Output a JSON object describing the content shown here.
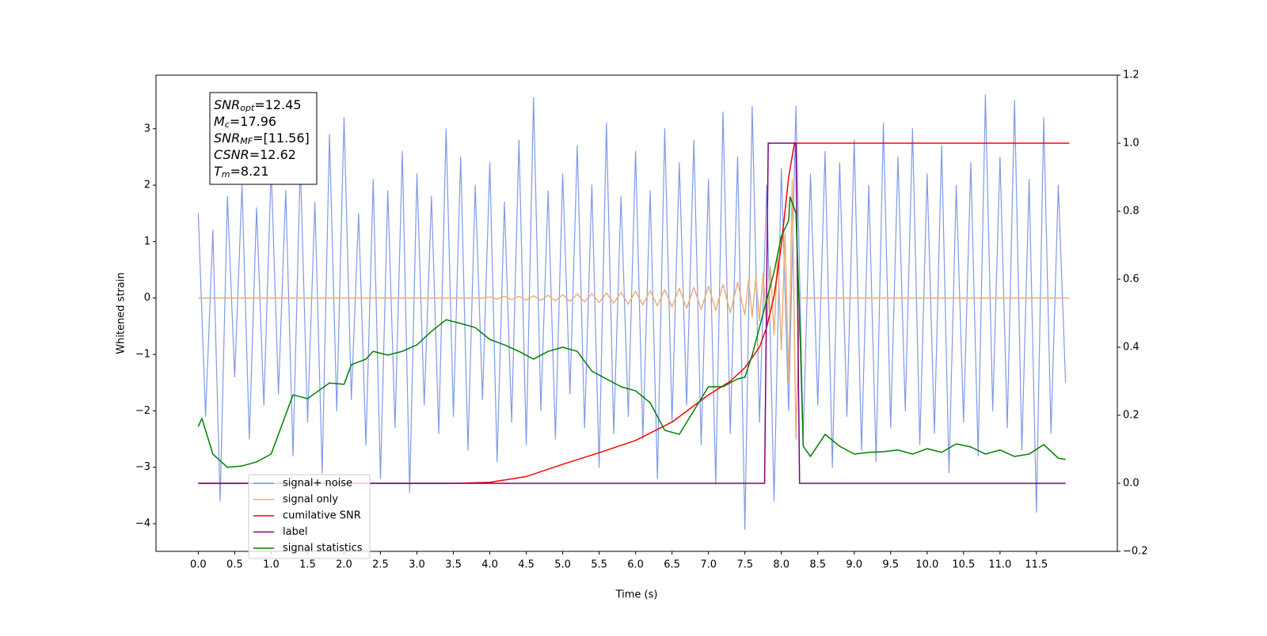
{
  "chart_data": {
    "type": "line",
    "x_label": "Time (s)",
    "y_label": "Whitened strain",
    "xlim": [
      -0.58,
      12.61
    ],
    "ylim": [
      -4.49,
      3.95
    ],
    "y2lim": [
      -0.2,
      1.2
    ],
    "xticks": [
      {
        "value": 0,
        "label": "0.0"
      },
      0.5,
      {
        "value": 1,
        "label": "1.0"
      },
      1.5,
      {
        "value": 2,
        "label": "2.0"
      },
      2.5,
      {
        "value": 3,
        "label": "3.0"
      },
      3.5,
      {
        "value": 4,
        "label": "4.0"
      },
      4.5,
      {
        "value": 5,
        "label": "5.0"
      },
      5.5,
      {
        "value": 6,
        "label": "6.0"
      },
      6.5,
      {
        "value": 7,
        "label": "7.0"
      },
      7.5,
      {
        "value": 8,
        "label": "8.0"
      },
      8.5,
      {
        "value": 9,
        "label": "9.0"
      },
      9.5,
      {
        "value": 10,
        "label": "10.0"
      },
      10.5,
      {
        "value": 11,
        "label": "11.0"
      },
      11.5
    ],
    "yticks": [
      {
        "value": -4,
        "label": "−4"
      },
      {
        "value": -3,
        "label": "−3"
      },
      {
        "value": -2,
        "label": "−2"
      },
      {
        "value": -1,
        "label": "−1"
      },
      0,
      1,
      2,
      3
    ],
    "y2ticks": [
      {
        "value": -0.2,
        "label": "−0.2"
      },
      {
        "value": 0,
        "label": "0.0"
      },
      0.2,
      0.4,
      0.6,
      0.8,
      {
        "value": 1,
        "label": "1.0"
      },
      1.2
    ],
    "legend": "lower left",
    "annotation": [
      {
        "main": "SNR",
        "sub": "opt",
        "rest": "=12.45"
      },
      {
        "main": "M",
        "sub": "c",
        "rest": "=17.96"
      },
      {
        "main": "SNR",
        "sub": "MF",
        "rest": "=[11.56]"
      },
      {
        "main": "CSNR",
        "sub": "",
        "rest": "=12.62"
      },
      {
        "main": "T",
        "sub": "m",
        "rest": "=8.21"
      }
    ],
    "series": [
      {
        "name": "signal+ noise",
        "color": "#7893e6",
        "x": [
          0,
          0.1,
          0.2,
          0.3,
          0.4,
          0.5,
          0.6,
          0.7,
          0.8,
          0.9,
          1,
          1.1,
          1.2,
          1.3,
          1.4,
          1.5,
          1.6,
          1.7,
          1.8,
          1.9,
          2,
          2.1,
          2.2,
          2.3,
          2.4,
          2.5,
          2.6,
          2.7,
          2.8,
          2.9,
          3,
          3.1,
          3.2,
          3.3,
          3.4,
          3.5,
          3.6,
          3.7,
          3.8,
          3.9,
          4,
          4.1,
          4.2,
          4.3,
          4.4,
          4.5,
          4.6,
          4.7,
          4.8,
          4.9,
          5,
          5.1,
          5.2,
          5.3,
          5.4,
          5.5,
          5.6,
          5.7,
          5.8,
          5.9,
          6,
          6.1,
          6.2,
          6.3,
          6.4,
          6.5,
          6.6,
          6.7,
          6.8,
          6.9,
          7,
          7.1,
          7.2,
          7.3,
          7.4,
          7.5,
          7.6,
          7.7,
          7.8,
          7.9,
          8,
          8.1,
          8.2,
          8.3,
          8.4,
          8.5,
          8.6,
          8.7,
          8.8,
          8.9,
          9,
          9.1,
          9.2,
          9.3,
          9.4,
          9.5,
          9.6,
          9.7,
          9.8,
          9.9,
          10,
          10.1,
          10.2,
          10.3,
          10.4,
          10.5,
          10.6,
          10.7,
          10.8,
          10.9,
          11,
          11.1,
          11.2,
          11.3,
          11.4,
          11.5,
          11.6,
          11.7,
          11.8,
          11.9
        ],
        "values": [
          1.5,
          -2.1,
          1.2,
          -3.6,
          1.8,
          -1.4,
          2.0,
          -2.5,
          1.6,
          -1.9,
          2.3,
          -1.7,
          1.9,
          -2.8,
          2.4,
          -2.2,
          1.7,
          -3.1,
          2.9,
          -2.0,
          3.2,
          -1.8,
          1.5,
          -2.6,
          2.1,
          -3.2,
          1.9,
          -2.3,
          2.6,
          -3.45,
          2.2,
          -1.9,
          1.8,
          -2.4,
          3.0,
          -2.1,
          2.5,
          -2.7,
          2.0,
          -1.8,
          2.4,
          -2.9,
          1.7,
          -2.2,
          2.8,
          -2.6,
          3.55,
          -2.0,
          1.9,
          -2.5,
          2.2,
          -1.7,
          2.7,
          -2.3,
          2.0,
          -3.0,
          3.1,
          -2.4,
          1.8,
          -2.1,
          2.6,
          -2.5,
          1.9,
          -3.2,
          3.0,
          -2.2,
          2.4,
          -1.9,
          2.8,
          -2.6,
          2.1,
          -3.3,
          3.3,
          -2.4,
          2.5,
          -4.1,
          3.4,
          -2.2,
          2.0,
          -3.6,
          2.3,
          -2.0,
          3.4,
          -2.5,
          2.2,
          -1.9,
          2.6,
          -3.0,
          2.4,
          -2.1,
          2.8,
          -2.7,
          2.0,
          -2.9,
          3.1,
          -2.3,
          2.5,
          -2.0,
          3.0,
          -2.6,
          2.2,
          -2.4,
          2.7,
          -3.1,
          2.0,
          -2.2,
          2.4,
          -2.8,
          3.6,
          -2.0,
          2.5,
          -2.3,
          3.5,
          -2.7,
          2.1,
          -3.8,
          3.2,
          -2.4,
          2.0,
          -1.5
        ]
      },
      {
        "name": "signal only",
        "color": "#e8b07a",
        "x": [
          0,
          3.9,
          4,
          4.1,
          4.2,
          4.3,
          4.4,
          4.5,
          4.6,
          4.7,
          4.8,
          4.9,
          5,
          5.1,
          5.2,
          5.3,
          5.4,
          5.5,
          5.6,
          5.7,
          5.8,
          5.9,
          6,
          6.1,
          6.2,
          6.3,
          6.4,
          6.5,
          6.6,
          6.7,
          6.8,
          6.9,
          7,
          7.1,
          7.2,
          7.3,
          7.4,
          7.5,
          7.55,
          7.6,
          7.65,
          7.7,
          7.75,
          7.8,
          7.85,
          7.9,
          7.95,
          8,
          8.05,
          8.1,
          8.15,
          8.2,
          8.25,
          11.95
        ],
        "values": [
          0,
          0,
          0.02,
          -0.02,
          0.03,
          -0.03,
          0.03,
          -0.04,
          0.04,
          -0.04,
          0.05,
          -0.05,
          0.06,
          -0.06,
          0.07,
          -0.07,
          0.08,
          -0.08,
          0.09,
          -0.09,
          0.1,
          -0.11,
          0.12,
          -0.12,
          0.13,
          -0.14,
          0.15,
          -0.16,
          0.17,
          -0.18,
          0.19,
          -0.2,
          0.21,
          -0.22,
          0.24,
          -0.26,
          0.28,
          -0.3,
          0.32,
          -0.34,
          0.37,
          -0.4,
          0.44,
          -0.5,
          0.56,
          -0.65,
          0.76,
          -0.92,
          1.15,
          -1.5,
          2.1,
          -2.5,
          0,
          0
        ]
      },
      {
        "name": "cumilative SNR",
        "color": "#ff0000",
        "axis": "y2",
        "x": [
          0,
          3.5,
          4,
          4.5,
          5,
          5.5,
          6,
          6.5,
          7,
          7.3,
          7.5,
          7.7,
          7.8,
          7.9,
          8,
          8.1,
          8.18,
          8.2,
          11.95
        ],
        "values": [
          0,
          0,
          0.003,
          0.02,
          0.056,
          0.09,
          0.126,
          0.18,
          0.26,
          0.3,
          0.34,
          0.4,
          0.46,
          0.55,
          0.7,
          0.9,
          1,
          1,
          1
        ]
      },
      {
        "name": "label",
        "color": "#800080",
        "axis": "y2",
        "x": [
          0,
          7.77,
          7.82,
          8.2,
          8.25,
          11.9
        ],
        "values": [
          0,
          0,
          1,
          1,
          0,
          0
        ]
      },
      {
        "name": "signal statistics",
        "color": "#008000",
        "axis": "y2",
        "x": [
          0,
          0.05,
          0.2,
          0.4,
          0.6,
          0.8,
          1,
          1.2,
          1.3,
          1.5,
          1.8,
          2,
          2.1,
          2.3,
          2.4,
          2.6,
          2.8,
          3,
          3.2,
          3.4,
          3.6,
          3.8,
          4,
          4.2,
          4.4,
          4.6,
          4.8,
          5,
          5.2,
          5.4,
          5.6,
          5.8,
          6,
          6.2,
          6.4,
          6.6,
          6.8,
          7,
          7.2,
          7.4,
          7.5,
          7.6,
          7.8,
          7.9,
          8,
          8.1,
          8.12,
          8.2,
          8.25,
          8.3,
          8.4,
          8.6,
          8.8,
          9,
          9.2,
          9.4,
          9.6,
          9.8,
          10,
          10.2,
          10.4,
          10.6,
          10.8,
          11,
          11.2,
          11.4,
          11.6,
          11.8,
          11.9
        ],
        "values": [
          0.167,
          0.191,
          0.086,
          0.047,
          0.051,
          0.063,
          0.086,
          0.202,
          0.26,
          0.249,
          0.295,
          0.291,
          0.349,
          0.365,
          0.388,
          0.377,
          0.388,
          0.407,
          0.447,
          0.481,
          0.47,
          0.458,
          0.423,
          0.407,
          0.388,
          0.365,
          0.388,
          0.4,
          0.388,
          0.33,
          0.307,
          0.284,
          0.272,
          0.237,
          0.156,
          0.144,
          0.214,
          0.284,
          0.284,
          0.307,
          0.312,
          0.377,
          0.54,
          0.621,
          0.726,
          0.772,
          0.842,
          0.795,
          0.493,
          0.109,
          0.079,
          0.144,
          0.109,
          0.086,
          0.091,
          0.093,
          0.098,
          0.086,
          0.102,
          0.091,
          0.116,
          0.107,
          0.086,
          0.098,
          0.079,
          0.086,
          0.114,
          0.074,
          0.07
        ]
      }
    ]
  }
}
